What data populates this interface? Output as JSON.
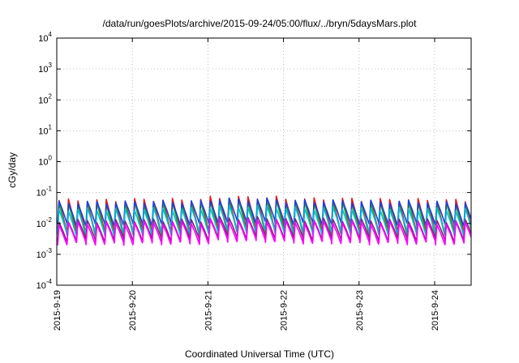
{
  "chart_data": {
    "type": "line",
    "title": "/data/run/goesPlots/archive/2015-09-24/05:00/flux/../bryn/5daysMars.plot",
    "xlabel": "Coordinated Universal Time (UTC)",
    "ylabel": "cGy/day",
    "y_scale": "log",
    "ylim": [
      0.0001,
      10000
    ],
    "xlim": [
      "2015-09-19 00:00",
      "2015-09-24 05:00"
    ],
    "x_ticks": [
      "2015-9-19",
      "2015-9-20",
      "2015-9-21",
      "2015-9-22",
      "2015-9-23",
      "2015-9-24"
    ],
    "y_ticks": [
      {
        "base": "10",
        "exp": "-4"
      },
      {
        "base": "10",
        "exp": "-3"
      },
      {
        "base": "10",
        "exp": "-2"
      },
      {
        "base": "10",
        "exp": "-1"
      },
      {
        "base": "10",
        "exp": "0"
      },
      {
        "base": "10",
        "exp": "1"
      },
      {
        "base": "10",
        "exp": "2"
      },
      {
        "base": "10",
        "exp": "3"
      },
      {
        "base": "10",
        "exp": "4"
      }
    ],
    "grid": true,
    "cycles_per_day": 8,
    "series": [
      {
        "color": "#e41a1c",
        "peak": 0.055,
        "trough": 0.005
      },
      {
        "color": "#2ca02c",
        "peak": 0.042,
        "trough": 0.004
      },
      {
        "color": "#1f3fd6",
        "peak": 0.048,
        "trough": 0.009
      },
      {
        "color": "#00bcd4",
        "peak": 0.028,
        "trough": 0.0045
      },
      {
        "color": "#8b1a8b",
        "peak": 0.012,
        "trough": 0.0028
      },
      {
        "color": "#ff00ff",
        "peak": 0.01,
        "trough": 0.0022
      }
    ],
    "day_levels": [
      1.0,
      1.05,
      1.25,
      1.1,
      1.05,
      1.0
    ]
  }
}
